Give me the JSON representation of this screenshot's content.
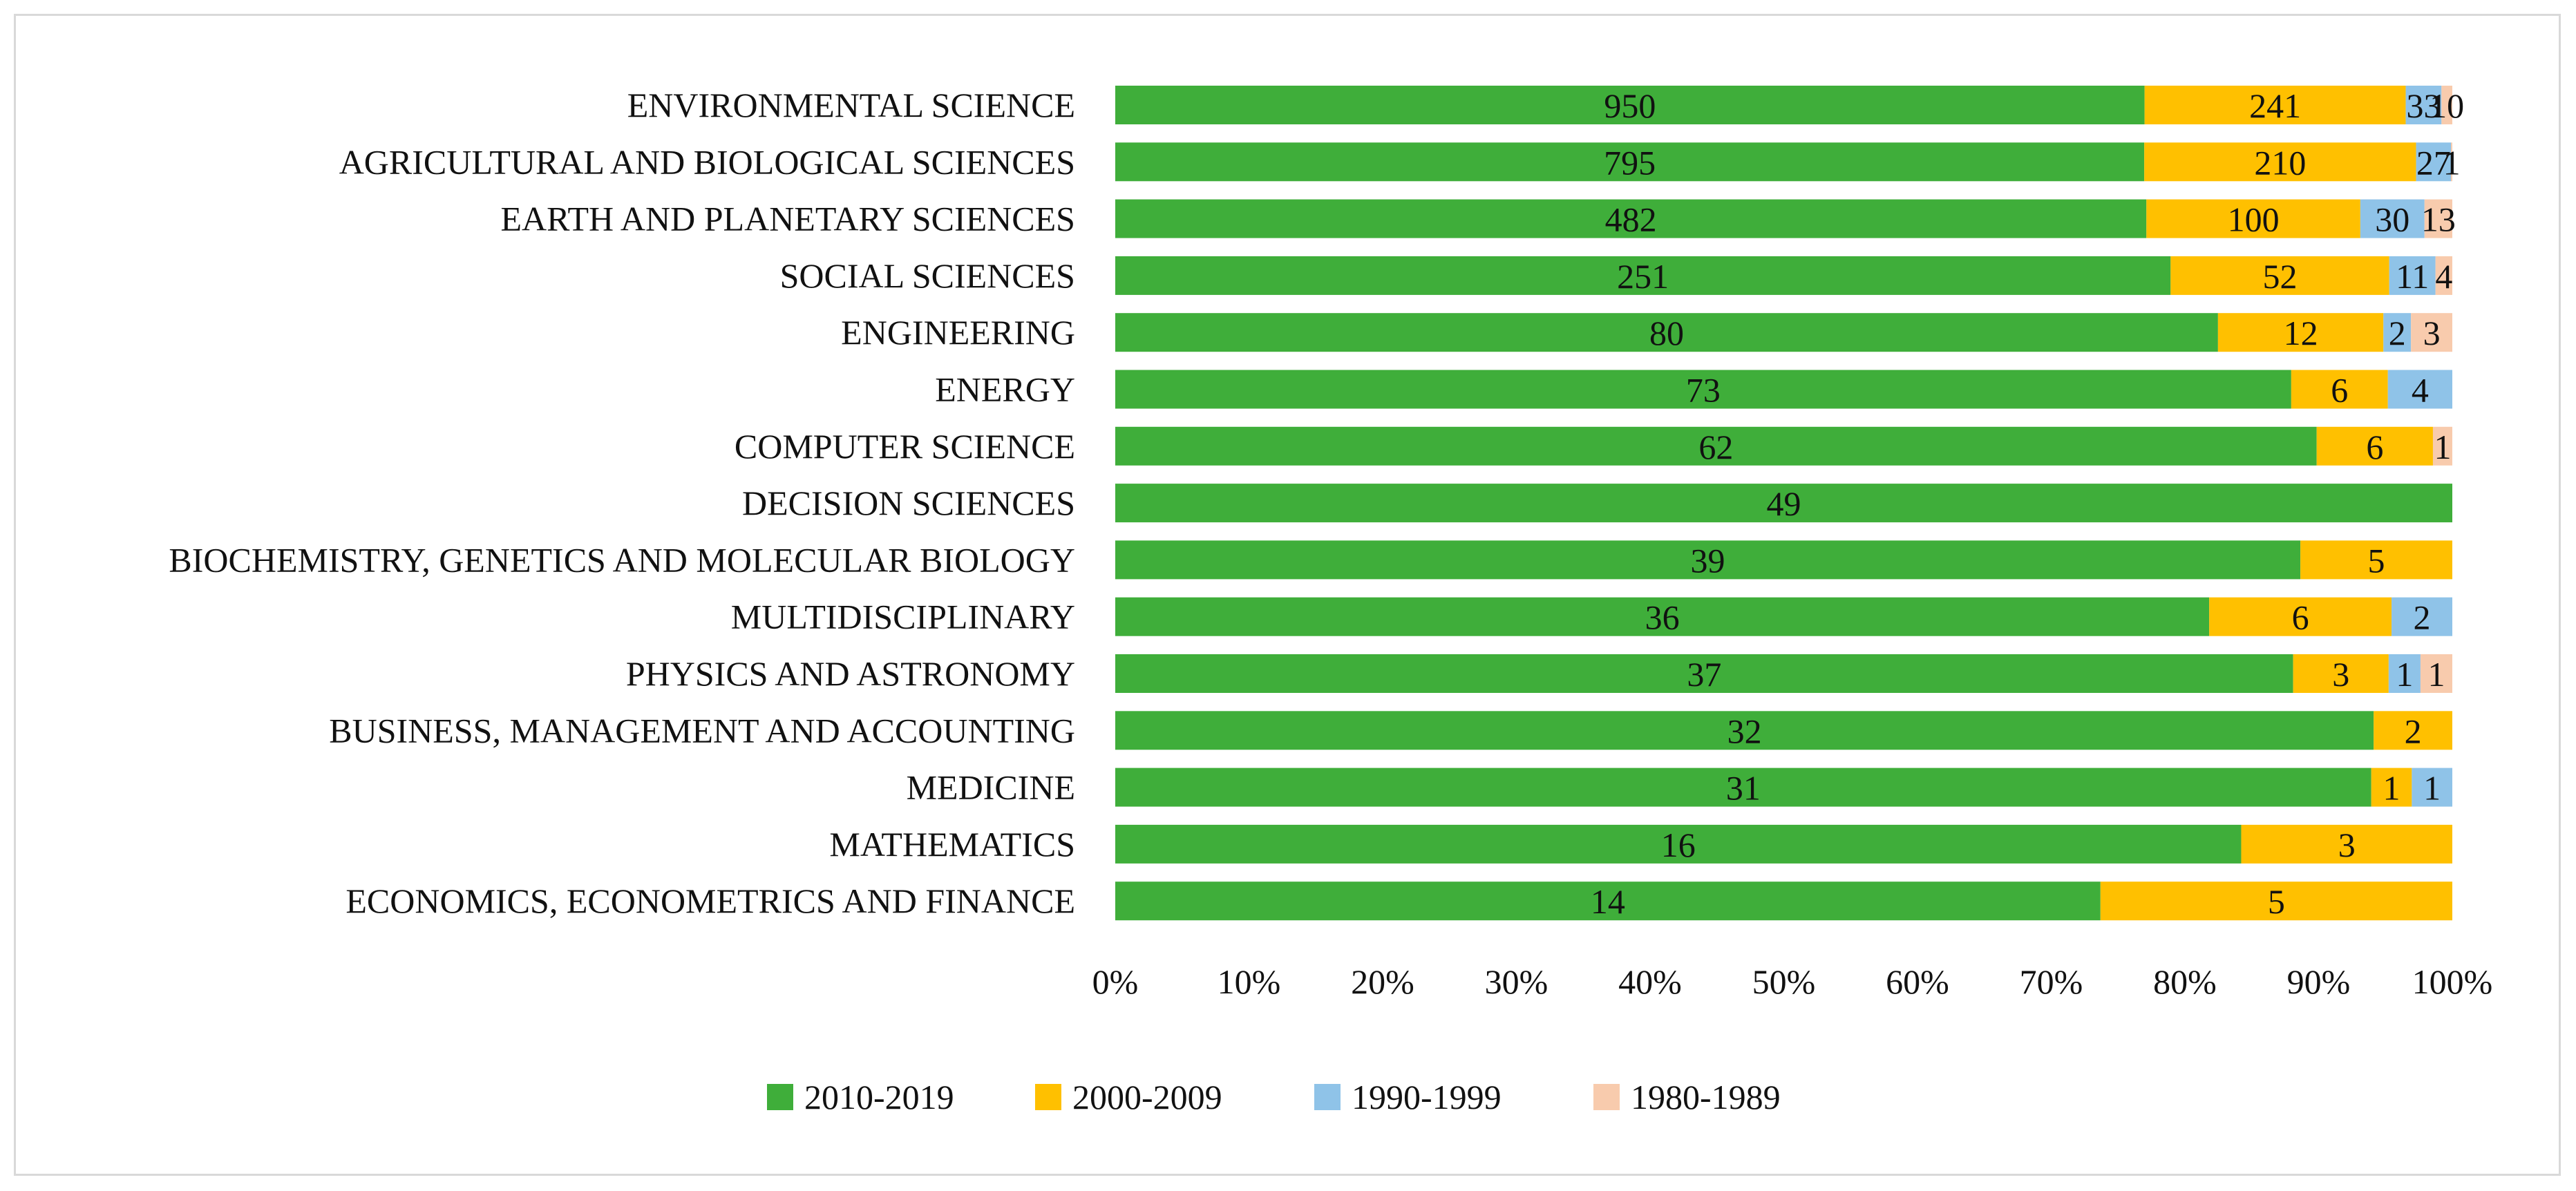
{
  "chart_data": {
    "type": "bar",
    "orientation": "horizontal",
    "stacked": "percent",
    "title": "",
    "xlabel": "",
    "ylabel": "",
    "xlim": [
      0,
      100
    ],
    "categories": [
      "ENVIRONMENTAL SCIENCE",
      "AGRICULTURAL AND BIOLOGICAL SCIENCES",
      "EARTH AND PLANETARY SCIENCES",
      "SOCIAL SCIENCES",
      "ENGINEERING",
      "ENERGY",
      "COMPUTER SCIENCE",
      "DECISION SCIENCES",
      "BIOCHEMISTRY, GENETICS AND MOLECULAR BIOLOGY",
      "MULTIDISCIPLINARY",
      "PHYSICS AND ASTRONOMY",
      "BUSINESS, MANAGEMENT AND ACCOUNTING",
      "MEDICINE",
      "MATHEMATICS",
      "ECONOMICS, ECONOMETRICS AND FINANCE"
    ],
    "series": [
      {
        "name": "2010-2019",
        "color": "#3fae3a",
        "values": [
          950,
          795,
          482,
          251,
          80,
          73,
          62,
          49,
          39,
          36,
          37,
          32,
          31,
          16,
          14
        ]
      },
      {
        "name": "2000-2009",
        "color": "#ffc000",
        "values": [
          241,
          210,
          100,
          52,
          12,
          6,
          6,
          0,
          5,
          6,
          3,
          2,
          1,
          3,
          5
        ]
      },
      {
        "name": "1990-1999",
        "color": "#8fc3e8",
        "values": [
          33,
          27,
          30,
          11,
          2,
          4,
          0,
          0,
          0,
          2,
          1,
          0,
          1,
          0,
          0
        ]
      },
      {
        "name": "1980-1989",
        "color": "#f8cbad",
        "values": [
          10,
          1,
          13,
          4,
          3,
          0,
          1,
          0,
          0,
          0,
          1,
          0,
          0,
          0,
          0
        ]
      }
    ],
    "x_ticks": [
      "0%",
      "10%",
      "20%",
      "30%",
      "40%",
      "50%",
      "60%",
      "70%",
      "80%",
      "90%",
      "100%"
    ],
    "legend_position": "bottom"
  }
}
